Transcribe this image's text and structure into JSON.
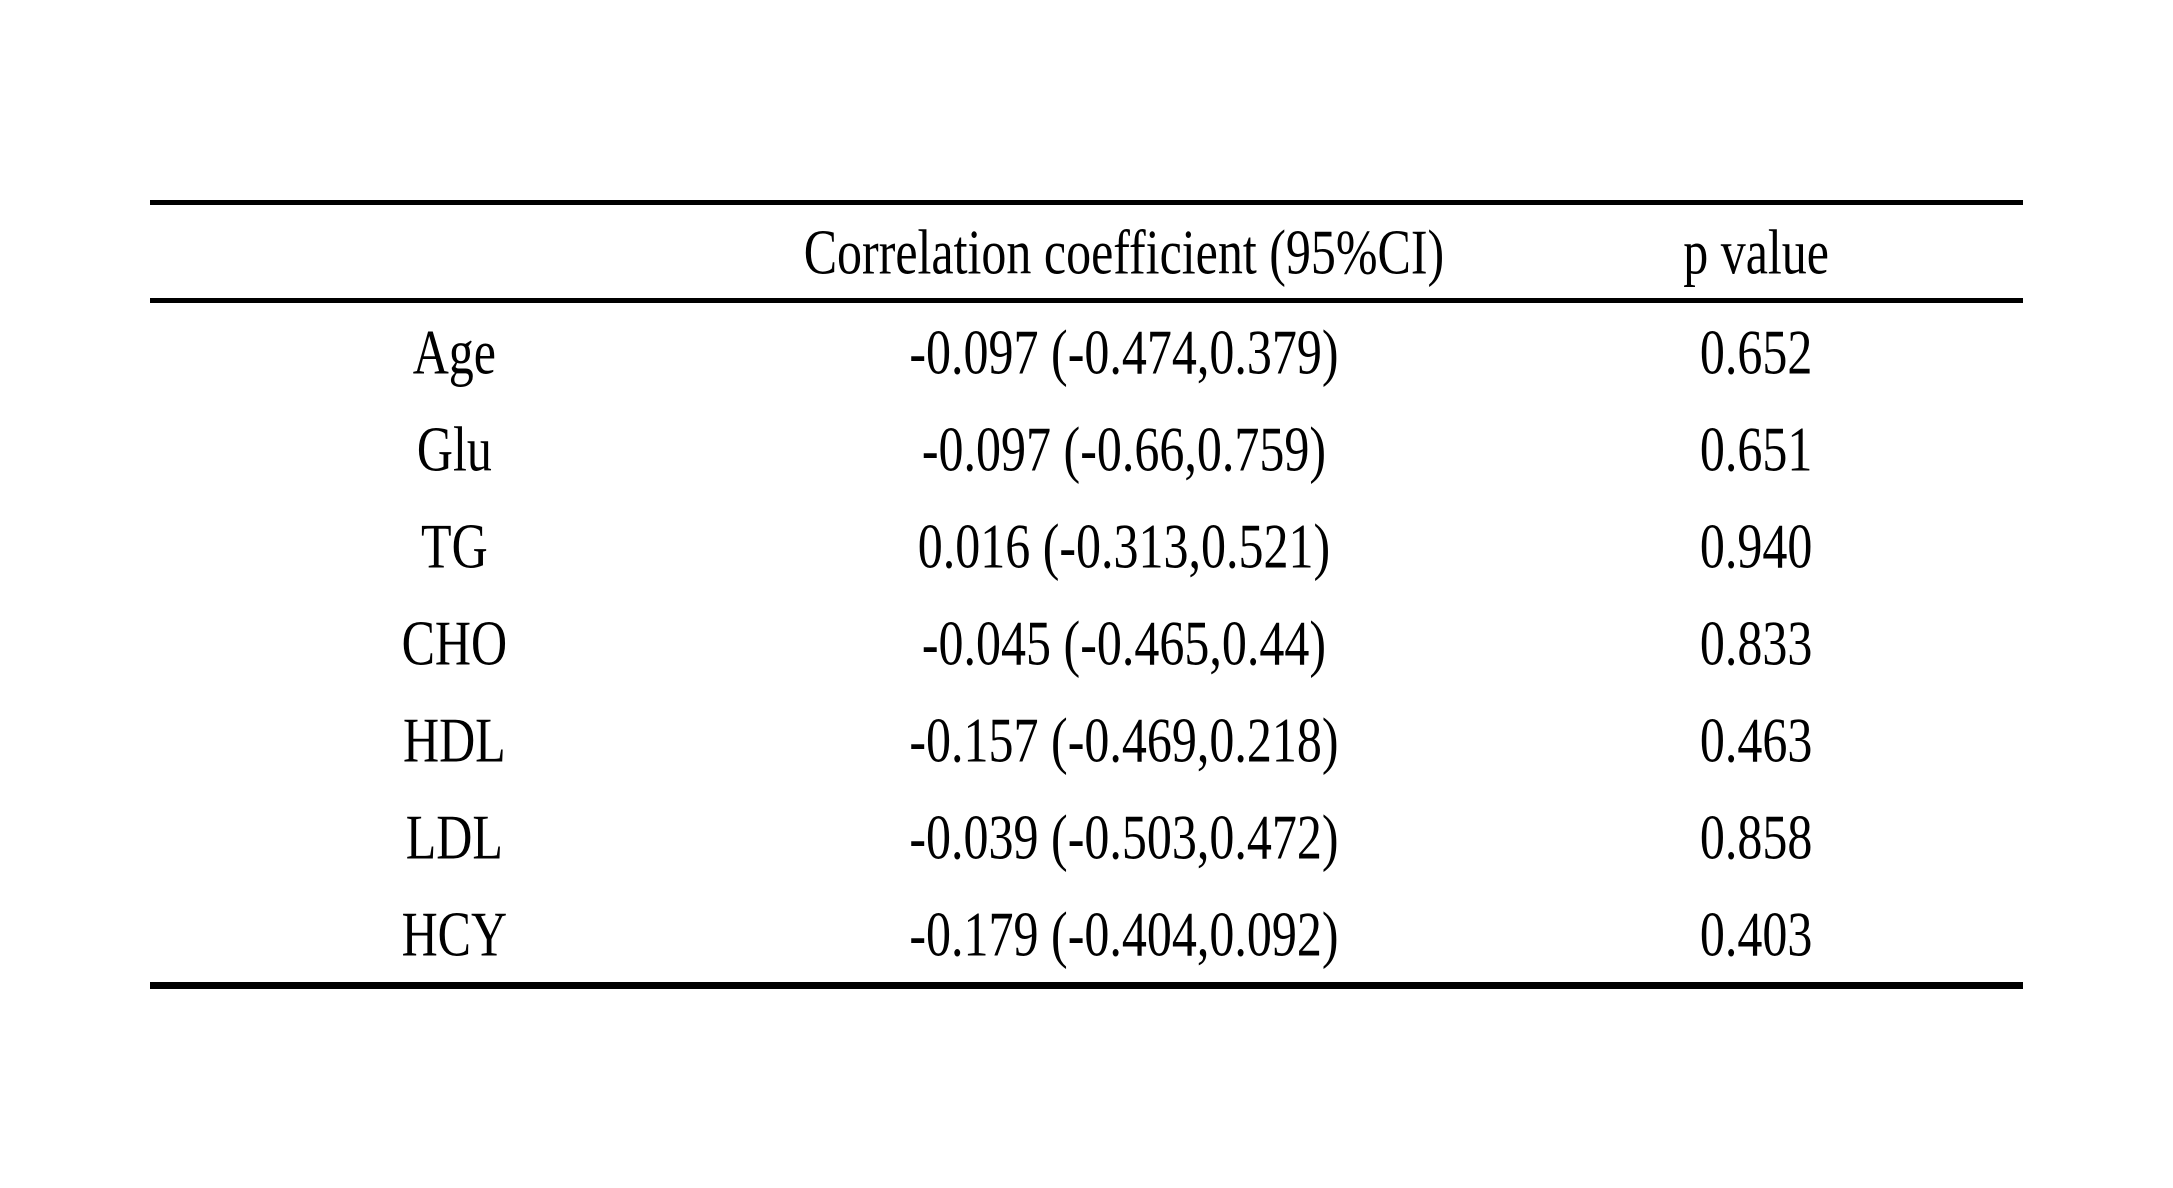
{
  "table": {
    "headers": {
      "label": "",
      "coefficient": "Correlation coefficient (95%CI)",
      "p_value": "p value"
    },
    "rows": [
      {
        "label": "Age",
        "coefficient": "-0.097 (-0.474,0.379)",
        "p_value": "0.652"
      },
      {
        "label": "Glu",
        "coefficient": "-0.097 (-0.66,0.759)",
        "p_value": "0.651"
      },
      {
        "label": "TG",
        "coefficient": "0.016 (-0.313,0.521)",
        "p_value": "0.940"
      },
      {
        "label": "CHO",
        "coefficient": "-0.045 (-0.465,0.44)",
        "p_value": "0.833"
      },
      {
        "label": "HDL",
        "coefficient": "-0.157 (-0.469,0.218)",
        "p_value": "0.463"
      },
      {
        "label": "LDL",
        "coefficient": "-0.039 (-0.503,0.472)",
        "p_value": "0.858"
      },
      {
        "label": "HCY",
        "coefficient": "-0.179 (-0.404,0.092)",
        "p_value": "0.403"
      }
    ],
    "colors": {
      "text": "#000000",
      "background": "#ffffff",
      "rule": "#000000"
    }
  }
}
